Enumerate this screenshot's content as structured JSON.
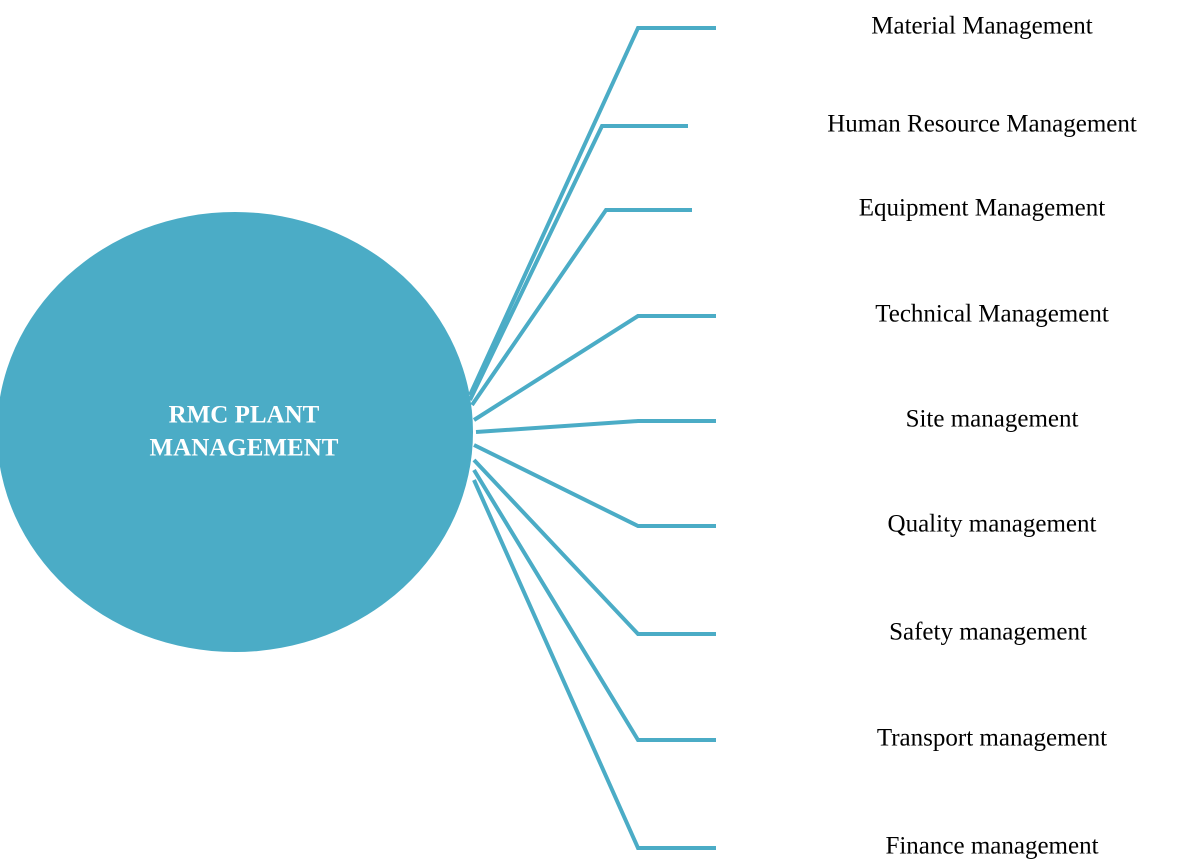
{
  "center": {
    "label_lines": [
      "RMC PLANT",
      "MANAGEMENT"
    ]
  },
  "branches": [
    {
      "label": "Material Management"
    },
    {
      "label": "Human Resource Management"
    },
    {
      "label": "Equipment Management"
    },
    {
      "label": "Technical Management"
    },
    {
      "label": "Site management"
    },
    {
      "label": "Quality management"
    },
    {
      "label": "Safety management"
    },
    {
      "label": "Transport management"
    },
    {
      "label": "Finance management"
    }
  ]
}
